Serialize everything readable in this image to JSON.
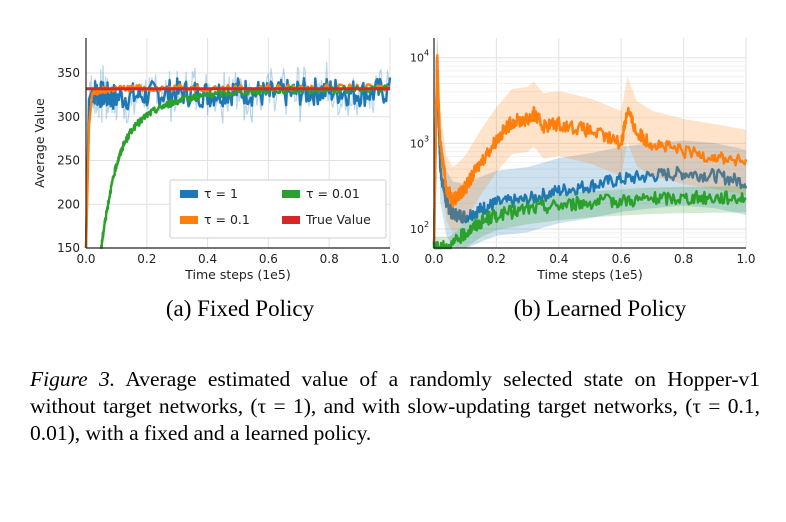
{
  "figure": {
    "caption_label": "Figure 3.",
    "caption_text": "Average estimated value of a randomly selected state on Hopper-v1 without target networks, (τ = 1), and with slow-updating target networks, (τ = 0.1, 0.01), with a fixed and a learned policy."
  },
  "chart_data": [
    {
      "type": "line",
      "subtitle": "(a) Fixed Policy",
      "xlabel": "Time steps (1e5)",
      "ylabel": "Average Value",
      "xlim": [
        0.0,
        1.0
      ],
      "ylim": [
        150,
        390
      ],
      "y_scale": "linear",
      "grid": true,
      "x_ticks": [
        "0.0",
        "0.2",
        "0.4",
        "0.6",
        "0.8",
        "1.0"
      ],
      "y_ticks": [
        "150",
        "200",
        "250",
        "300",
        "350"
      ],
      "legend": {
        "placement": "bottom-right",
        "entries": [
          "τ = 1",
          "τ = 0.01",
          "τ = 0.1",
          "True Value"
        ]
      },
      "series": [
        {
          "name": "τ = 1",
          "color": "#1f77b4",
          "x": [
            0.0,
            0.01,
            0.02,
            0.05,
            0.1,
            0.2,
            0.3,
            0.4,
            0.5,
            0.6,
            0.7,
            0.8,
            0.9,
            1.0
          ],
          "y": [
            150,
            320,
            330,
            325,
            322,
            325,
            328,
            326,
            330,
            325,
            328,
            330,
            327,
            330
          ]
        },
        {
          "name": "τ = 0.1",
          "color": "#ff7f0e",
          "x": [
            0.0,
            0.01,
            0.02,
            0.05,
            0.1,
            0.2,
            0.4,
            0.6,
            0.8,
            1.0
          ],
          "y": [
            150,
            290,
            325,
            330,
            332,
            333,
            333,
            333,
            333,
            333
          ]
        },
        {
          "name": "τ = 0.01",
          "color": "#2ca02c",
          "x": [
            0.05,
            0.06,
            0.08,
            0.1,
            0.12,
            0.15,
            0.2,
            0.25,
            0.3,
            0.35,
            0.4,
            0.5,
            0.6,
            0.8,
            1.0
          ],
          "y": [
            150,
            175,
            215,
            245,
            265,
            285,
            302,
            312,
            318,
            322,
            325,
            328,
            330,
            331,
            332
          ]
        },
        {
          "name": "True Value",
          "color": "#d62728",
          "x": [
            0.0,
            1.0
          ],
          "y": [
            332,
            332
          ]
        }
      ]
    },
    {
      "type": "line",
      "subtitle": "(b) Learned Policy",
      "xlabel": "Time steps (1e5)",
      "ylabel": "",
      "xlim": [
        0.0,
        1.0
      ],
      "ylim": [
        60,
        17000
      ],
      "y_scale": "log",
      "grid": true,
      "x_ticks": [
        "0.0",
        "0.2",
        "0.4",
        "0.6",
        "0.8",
        "1.0"
      ],
      "y_ticks": [
        {
          "base": "10",
          "exp": "2",
          "value": 100
        },
        {
          "base": "10",
          "exp": "3",
          "value": 1000
        },
        {
          "base": "10",
          "exp": "4",
          "value": 10000
        }
      ],
      "series": [
        {
          "name": "τ = 1",
          "color": "#1f77b4",
          "x": [
            0.0,
            0.01,
            0.02,
            0.04,
            0.06,
            0.1,
            0.15,
            0.2,
            0.3,
            0.4,
            0.5,
            0.6,
            0.7,
            0.8,
            0.9,
            1.0
          ],
          "y": [
            60,
            10000,
            500,
            200,
            150,
            140,
            170,
            200,
            220,
            280,
            320,
            380,
            420,
            450,
            420,
            350
          ]
        },
        {
          "name": "τ = 0.1",
          "color": "#ff7f0e",
          "x": [
            0.0,
            0.01,
            0.02,
            0.04,
            0.06,
            0.08,
            0.1,
            0.15,
            0.2,
            0.25,
            0.3,
            0.32,
            0.35,
            0.4,
            0.5,
            0.6,
            0.62,
            0.65,
            0.7,
            0.8,
            0.9,
            1.0
          ],
          "y": [
            60,
            10000,
            1000,
            300,
            220,
            250,
            300,
            600,
            1100,
            1800,
            1900,
            2200,
            1600,
            1700,
            1400,
            1000,
            2500,
            1300,
            1000,
            800,
            700,
            600
          ]
        },
        {
          "name": "τ = 0.01",
          "color": "#2ca02c",
          "x": [
            0.0,
            0.02,
            0.05,
            0.1,
            0.15,
            0.2,
            0.3,
            0.4,
            0.5,
            0.6,
            0.7,
            0.8,
            0.9,
            1.0
          ],
          "y": [
            60,
            60,
            60,
            90,
            120,
            145,
            170,
            190,
            205,
            215,
            225,
            230,
            232,
            235
          ]
        }
      ]
    }
  ]
}
